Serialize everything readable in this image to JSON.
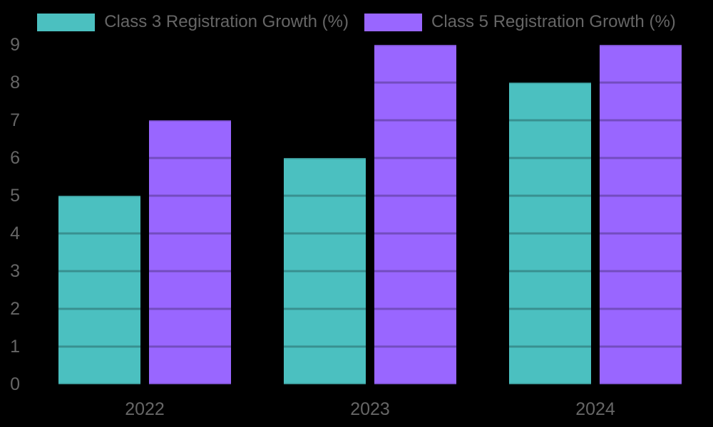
{
  "chart_data": {
    "type": "bar",
    "title": "",
    "categories": [
      "2022",
      "2023",
      "2024"
    ],
    "series": [
      {
        "name": "Class 3 Registration Growth (%)",
        "color": "#4BC0C0",
        "values": [
          5,
          6,
          8
        ]
      },
      {
        "name": "Class 5 Registration Growth (%)",
        "color": "#9966FF",
        "values": [
          7,
          9,
          9
        ]
      }
    ],
    "xlabel": "",
    "ylabel": "",
    "ylim": [
      0,
      9
    ],
    "ytick_step": 1,
    "yticks": [
      "0",
      "1",
      "2",
      "3",
      "4",
      "5",
      "6",
      "7",
      "8",
      "9"
    ],
    "legend_position": "top",
    "grid": "horizontal",
    "grid_color": "rgba(0,0,0,0.25)",
    "background_color": "#000000",
    "text_color": "#666666"
  }
}
